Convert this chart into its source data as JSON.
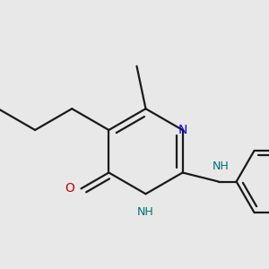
{
  "bg_color": "#e8e8e8",
  "bond_color": "#1a1a1a",
  "bond_lw": 1.6,
  "N_color": "#0000ee",
  "O_color": "#cc0000",
  "NH_color": "#007070",
  "figsize": [
    3.0,
    3.0
  ],
  "dpi": 100,
  "xlim": [
    30,
    270
  ],
  "ylim": [
    50,
    280
  ]
}
